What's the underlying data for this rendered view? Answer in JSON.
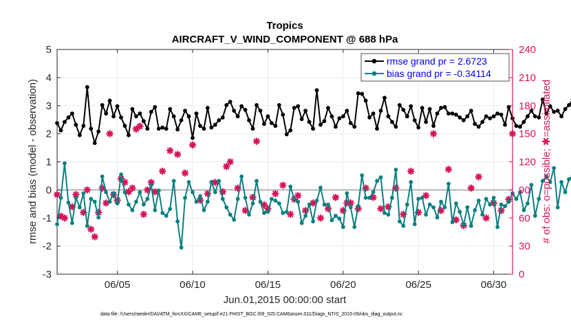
{
  "chart_data": {
    "type": "line",
    "title": "Tropics",
    "subtitle": "AIRCRAFT_V_WIND_COMPONENT @ 688 hPa",
    "xlabel": "Jun.01,2015 00:00:00 start",
    "ylabel_left": "rmse and bias (model - observation)",
    "ylabel_right": "# of obs: o=possible; ✱=assimilated",
    "footnote": "data file: /Users/raeder/DAI/ATM_forcXX/CAM6_setup/f.e21.FHIST_BGC.f09_025.CAM6assim.011/Diags_NTrS_2015-06/obs_diag_output.nc",
    "x_range": [
      1.0,
      31.25
    ],
    "x_ticks": [
      5,
      10,
      15,
      20,
      25,
      30
    ],
    "x_tick_labels": [
      "06/05",
      "06/10",
      "06/15",
      "06/20",
      "06/25",
      "06/30"
    ],
    "ylim_left": [
      -3,
      5
    ],
    "yticks_left": [
      -3,
      -2,
      -1,
      0,
      1,
      2,
      3,
      4,
      5
    ],
    "ylim_right": [
      0,
      240
    ],
    "yticks_right": [
      0,
      30,
      60,
      90,
      120,
      150,
      180,
      210,
      240
    ],
    "x_start": 1.0,
    "x_step": 0.25,
    "legend_position": "top-right",
    "colors": {
      "rmse": "#000000",
      "bias": "#0a7f7f",
      "obs": "#d6145a",
      "zero_line": "#b3b3b3",
      "right_axis": "#d6145a",
      "legend_text": "#0000ee",
      "grid": "#e6e6e6"
    },
    "series": [
      {
        "name": "rmse grand pr = 2.6723",
        "axis": "left",
        "values": [
          2.38,
          2.12,
          2.42,
          2.58,
          2.72,
          2.32,
          1.95,
          2.28,
          3.66,
          2.18,
          1.67,
          2.08,
          3.02,
          2.72,
          3.18,
          2.62,
          2.98,
          2.58,
          2.28,
          1.95,
          2.88,
          2.62,
          2.72,
          2.45,
          2.18,
          2.78,
          2.95,
          2.18,
          2.22,
          2.18,
          2.88,
          2.62,
          2.15,
          2.48,
          2.82,
          2.62,
          1.85,
          2.72,
          2.28,
          2.18,
          2.92,
          2.22,
          2.32,
          2.48,
          2.58,
          3.02,
          3.14,
          2.82,
          2.62,
          2.98,
          2.85,
          2.48,
          2.18,
          3.02,
          2.82,
          2.35,
          2.62,
          2.38,
          2.28,
          3.02,
          2.68,
          1.98,
          2.12,
          2.92,
          2.98,
          2.52,
          2.82,
          2.42,
          2.18,
          3.55,
          2.32,
          2.45,
          2.92,
          2.62,
          2.25,
          2.55,
          2.62,
          2.82,
          2.38,
          2.25,
          3.44,
          3.42,
          3.18,
          2.58,
          2.72,
          2.18,
          2.82,
          3.28,
          2.62,
          2.42,
          2.25,
          3.02,
          2.85,
          2.62,
          2.98,
          2.48,
          2.22,
          2.92,
          2.42,
          2.88,
          2.28,
          2.72,
          2.92,
          2.95,
          2.72,
          2.72,
          2.68,
          2.58,
          2.48,
          2.62,
          2.82,
          2.35,
          2.25,
          2.42,
          2.62,
          2.55,
          2.62,
          2.72,
          2.68,
          2.32,
          2.95,
          2.55,
          2.28,
          2.25,
          2.42,
          2.62,
          2.82,
          2.62,
          2.58,
          3.22,
          2.72,
          2.98,
          2.78,
          2.82,
          2.62,
          2.88,
          3.02,
          3.22,
          2.38,
          2.22
        ]
      },
      {
        "name": "bias grand pr = -0.34114",
        "axis": "left",
        "values": [
          -1.22,
          -0.28,
          0.95,
          -0.45,
          -1.18,
          -0.28,
          -0.62,
          -0.12,
          -1.28,
          -0.32,
          -0.42,
          -0.98,
          0.48,
          -0.08,
          -0.42,
          -0.12,
          -0.48,
          0.55,
          -0.08,
          -0.52,
          -0.72,
          -0.42,
          -0.08,
          -0.52,
          -0.32,
          0.18,
          -0.72,
          -0.02,
          -0.82,
          -0.92,
          -0.68,
          0.32,
          -1.12,
          -2.05,
          -0.28,
          0.28,
          -0.08,
          -0.42,
          -0.22,
          -0.72,
          -0.42,
          0.28,
          -0.08,
          0.32,
          -0.32,
          -0.62,
          -0.88,
          -1.06,
          -0.32,
          0.48,
          -0.28,
          -0.88,
          -0.48,
          0.32,
          -0.42,
          -0.82,
          -0.78,
          -0.32,
          -0.38,
          -0.48,
          -0.82,
          -0.78,
          0.12,
          -0.32,
          -0.42,
          -1.18,
          -0.92,
          -0.52,
          -1.12,
          -0.38,
          0.08,
          -0.52,
          -0.52,
          -1.08,
          -0.92,
          -1.02,
          -1.32,
          -0.12,
          -0.62,
          -1.32,
          -0.58,
          0.52,
          -0.28,
          -0.28,
          -0.08,
          0.32,
          0.45,
          -0.82,
          -0.88,
          -0.28,
          0.72,
          -1.12,
          -1.28,
          -0.52,
          0.28,
          -1.22,
          -0.32,
          -0.28,
          -0.88,
          -0.52,
          -0.62,
          -0.98,
          -0.42,
          -0.62,
          0.22,
          -1.15,
          -0.48,
          -0.78,
          -1.25,
          -0.62,
          -1.28,
          -0.72,
          -0.38,
          -0.88,
          -0.32,
          -0.52,
          -0.28,
          -1.32,
          -0.52,
          -0.58,
          -0.42,
          -0.12,
          -0.32,
          -0.08,
          -0.72,
          -0.48,
          0.18,
          -0.92,
          -0.32,
          0.32,
          0.48,
          0.28,
          0.78,
          -0.62,
          0.28,
          -0.08,
          0.38,
          0.52,
          0.22,
          0.52,
          -0.28
        ]
      },
      {
        "name": "obs assimilated",
        "axis": "right",
        "x": [
          1.0,
          1.25,
          1.5,
          2.0,
          2.25,
          2.75,
          3.0,
          3.25,
          3.5,
          3.75,
          4.0,
          4.25,
          4.5,
          4.75,
          5.0,
          5.25,
          5.5,
          5.75,
          6.0,
          6.25,
          6.5,
          6.75,
          7.0,
          7.25,
          7.5,
          8.0,
          8.5,
          9.0,
          9.5,
          10.0,
          10.5,
          11.0,
          11.5,
          12.0,
          12.25,
          12.5,
          13.0,
          13.5,
          14.0,
          14.25,
          14.75,
          15.0,
          15.5,
          16.0,
          16.5,
          16.75,
          17.0,
          17.5,
          18.0,
          18.5,
          19.0,
          19.5,
          20.0,
          20.25,
          20.5,
          21.0,
          21.5,
          22.0,
          22.5,
          23.0,
          23.5,
          24.0,
          24.5,
          25.0,
          25.5,
          26.0,
          26.5,
          27.0,
          27.5,
          28.0,
          28.5,
          29.0,
          29.5,
          30.0,
          30.5,
          31.0,
          31.25
        ],
        "values": [
          85,
          62,
          60,
          72,
          85,
          66,
          90,
          48,
          40,
          66,
          92,
          76,
          150,
          85,
          79,
          102,
          98,
          88,
          92,
          155,
          158,
          64,
          90,
          98,
          88,
          110,
          132,
          128,
          108,
          138,
          79,
          86,
          98,
          88,
          115,
          120,
          92,
          68,
          82,
          142,
          74,
          70,
          86,
          95,
          64,
          80,
          84,
          68,
          76,
          60,
          70,
          82,
          68,
          76,
          76,
          70,
          92,
          82,
          70,
          72,
          92,
          64,
          110,
          66,
          84,
          150,
          68,
          112,
          58,
          52,
          92,
          104,
          60,
          76,
          68,
          80,
          150
        ]
      }
    ]
  }
}
